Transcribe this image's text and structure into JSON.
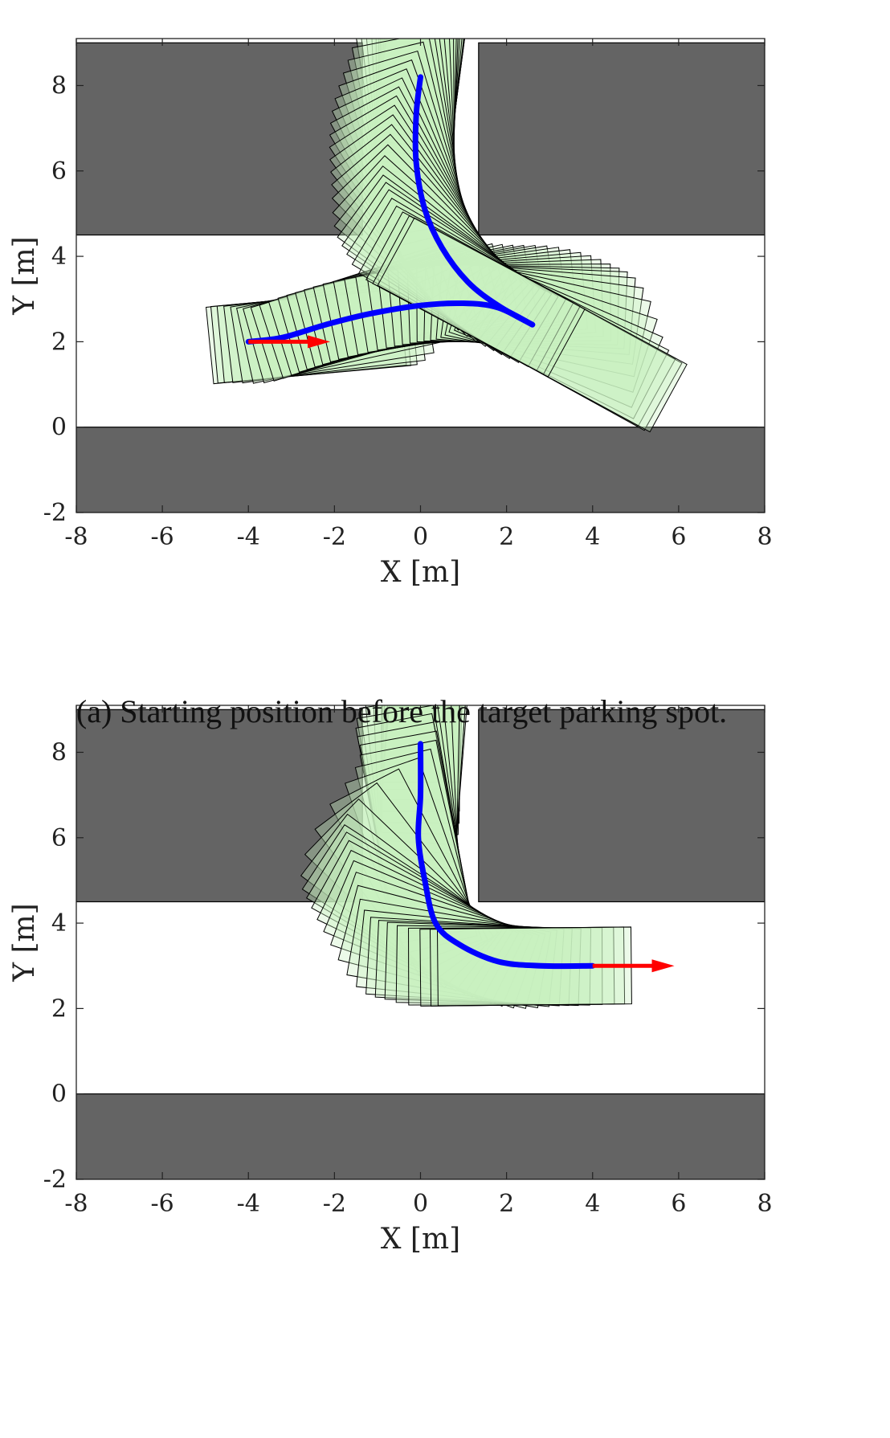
{
  "figure": {
    "caption_a": "(a) Starting position before the target parking spot."
  },
  "chart_data": [
    {
      "type": "scatter",
      "panel": "a",
      "xlabel": "X [m]",
      "ylabel": "Y [m]",
      "xlim": [
        -8,
        8
      ],
      "ylim": [
        -2,
        9.1
      ],
      "xticks": [
        -8,
        -6,
        -4,
        -2,
        0,
        2,
        4,
        6,
        8
      ],
      "yticks": [
        -2,
        0,
        2,
        4,
        6,
        8
      ],
      "grid": false,
      "obstacles": [
        {
          "x": [
            -8,
            -1.35
          ],
          "y": [
            4.5,
            9.0
          ]
        },
        {
          "x": [
            1.35,
            8
          ],
          "y": [
            4.5,
            9.0
          ]
        },
        {
          "x": [
            -8,
            8
          ],
          "y": [
            -2,
            0
          ]
        }
      ],
      "series": [
        {
          "role": "trajectory",
          "color": "#0000ff",
          "points": [
            [
              -4,
              2.0
            ],
            [
              -3.2,
              2.1
            ],
            [
              -2.2,
              2.4
            ],
            [
              -1.2,
              2.65
            ],
            [
              0,
              2.85
            ],
            [
              1.0,
              2.9
            ],
            [
              1.8,
              2.8
            ],
            [
              2.6,
              2.4
            ]
          ]
        },
        {
          "role": "trajectory",
          "color": "#0000ff",
          "points": [
            [
              0,
              8.2
            ],
            [
              -0.1,
              7.3
            ],
            [
              -0.1,
              6.2
            ],
            [
              0.1,
              5.1
            ],
            [
              0.5,
              4.2
            ],
            [
              1.1,
              3.4
            ],
            [
              1.8,
              2.85
            ],
            [
              2.6,
              2.4
            ]
          ]
        }
      ],
      "start_arrow": {
        "color": "#ff0000",
        "from": [
          -4,
          2.0
        ],
        "to": [
          -2.1,
          2.0
        ]
      },
      "vehicle": {
        "length": 4.5,
        "width": 1.8,
        "fill": "#c8f2c0",
        "edge": "#000000"
      }
    },
    {
      "type": "scatter",
      "panel": "b",
      "xlabel": "X [m]",
      "ylabel": "Y [m]",
      "xlim": [
        -8,
        8
      ],
      "ylim": [
        -2,
        9.1
      ],
      "xticks": [
        -8,
        -6,
        -4,
        -2,
        0,
        2,
        4,
        6,
        8
      ],
      "yticks": [
        -2,
        0,
        2,
        4,
        6,
        8
      ],
      "grid": false,
      "obstacles": [
        {
          "x": [
            -8,
            -1.35
          ],
          "y": [
            4.5,
            9.0
          ]
        },
        {
          "x": [
            1.35,
            8
          ],
          "y": [
            4.5,
            9.0
          ]
        },
        {
          "x": [
            -8,
            8
          ],
          "y": [
            -2,
            0
          ]
        }
      ],
      "series": [
        {
          "role": "trajectory",
          "color": "#0000ff",
          "points": [
            [
              0,
              8.2
            ],
            [
              0,
              7.0
            ],
            [
              -0.05,
              6.0
            ],
            [
              0.1,
              5.0
            ],
            [
              0.35,
              4.0
            ],
            [
              0.9,
              3.5
            ],
            [
              1.8,
              3.1
            ],
            [
              2.8,
              3.0
            ],
            [
              4.0,
              3.0
            ]
          ]
        }
      ],
      "start_arrow": {
        "color": "#ff0000",
        "from": [
          4.0,
          3.0
        ],
        "to": [
          5.9,
          3.0
        ]
      },
      "vehicle": {
        "length": 4.5,
        "width": 1.8,
        "fill": "#c8f2c0",
        "edge": "#000000"
      }
    }
  ]
}
